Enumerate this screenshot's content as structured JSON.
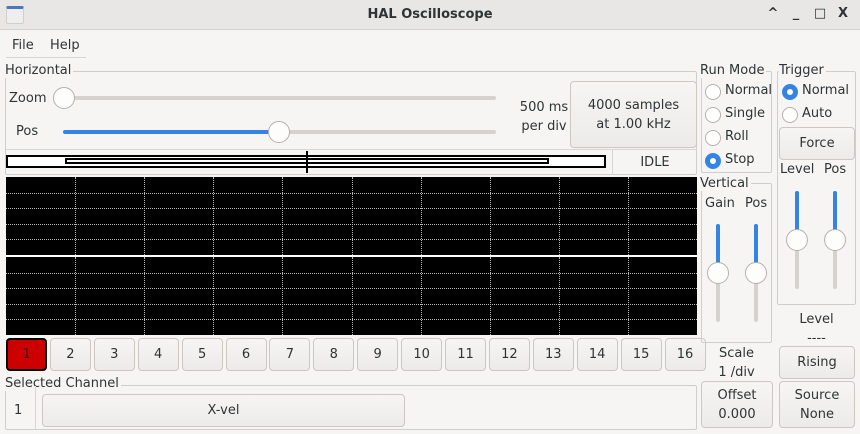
{
  "window": {
    "title": "HAL Oscilloscope",
    "controls": [
      "^",
      "_",
      "□",
      "X"
    ]
  },
  "menu": [
    "File",
    "Help"
  ],
  "horizontal": {
    "label": "Horizontal",
    "zoom_label": "Zoom",
    "pos_label": "Pos",
    "zoom_value": 0,
    "pos_value": 0.5,
    "rate_line1": "500 ms",
    "rate_line2": "per div",
    "samples_line1": "4000 samples",
    "samples_line2": "at 1.00 kHz",
    "status": "IDLE"
  },
  "run_mode": {
    "label": "Run Mode",
    "options": [
      "Normal",
      "Single",
      "Roll",
      "Stop"
    ],
    "selected": "Stop"
  },
  "trigger": {
    "label": "Trigger",
    "options": [
      "Normal",
      "Auto"
    ],
    "selected": "Normal",
    "force": "Force",
    "level_label": "Level",
    "pos_label": "Pos",
    "level_value": 0.5,
    "pos_value": 0.5,
    "level_title": "Level",
    "level_readout": "----",
    "edge": "Rising",
    "source_line1": "Source",
    "source_line2": "None"
  },
  "vertical": {
    "label": "Vertical",
    "gain_label": "Gain",
    "pos_label": "Pos",
    "gain_value": 0.5,
    "pos_value": 0.5,
    "scale_line1": "Scale",
    "scale_line2": "1 /div",
    "offset_line1": "Offset",
    "offset_line2": "0.000"
  },
  "channels": [
    "1",
    "2",
    "3",
    "4",
    "5",
    "6",
    "7",
    "8",
    "9",
    "10",
    "11",
    "12",
    "13",
    "14",
    "15",
    "16"
  ],
  "selected_channel": {
    "label": "Selected Channel",
    "number": "1",
    "name": "X-vel"
  },
  "colors": {
    "accent": "#3584e4",
    "selected_channel": "#cc0000"
  }
}
